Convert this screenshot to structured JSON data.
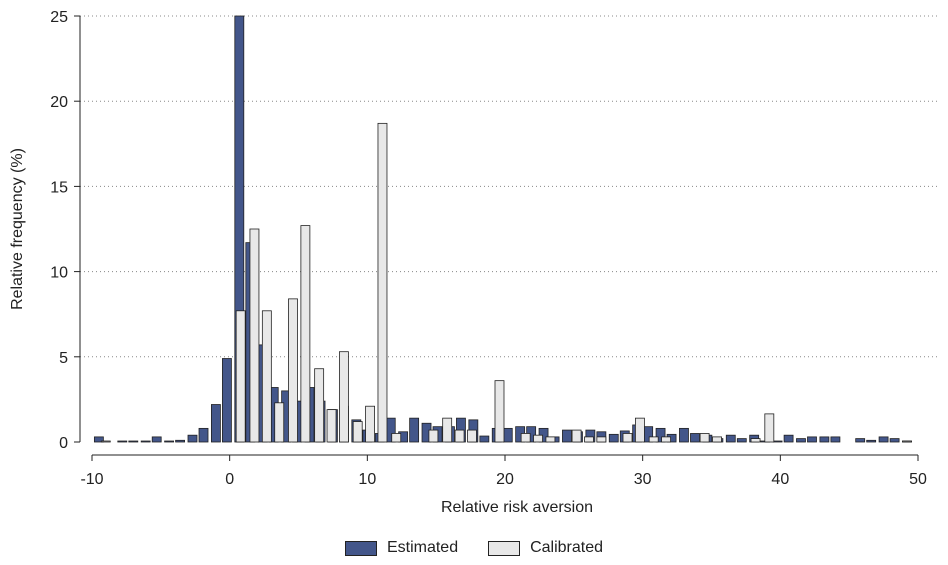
{
  "chart_data": {
    "type": "bar",
    "xlabel": "Relative risk aversion",
    "ylabel": "Relative frequency (%)",
    "xlim": [
      -10,
      50
    ],
    "ylim": [
      0,
      25
    ],
    "xticks": [
      -10,
      0,
      10,
      20,
      30,
      40,
      50
    ],
    "yticks": [
      0,
      5,
      10,
      15,
      20,
      25
    ],
    "xtick_labels": [
      "-10",
      "0",
      "10",
      "20",
      "30",
      "40",
      "50"
    ],
    "ytick_labels": [
      "0",
      "5",
      "10",
      "15",
      "20",
      "25"
    ],
    "grid": "horizontal dotted",
    "legend": "bottom",
    "series": [
      {
        "name": "Estimated",
        "color": "#43568a",
        "x": [
          -9.5,
          -7.8,
          -7,
          -6.1,
          -5.3,
          -4.4,
          -3.6,
          -2.7,
          -1.9,
          -1,
          -0.2,
          0.7,
          1.5,
          2.4,
          3.2,
          4.1,
          4.9,
          5.8,
          6.6,
          7.5,
          8.3,
          9.2,
          10,
          10.9,
          11.7,
          12.6,
          13.4,
          14.3,
          15.1,
          16,
          16.8,
          17.7,
          18.5,
          19.4,
          20.2,
          21.1,
          21.9,
          22.8,
          23.6,
          24.5,
          25.3,
          26.2,
          27,
          27.9,
          28.7,
          29.6,
          30.4,
          31.3,
          32.1,
          33,
          33.8,
          34.7,
          35.5,
          36.4,
          37.2,
          38.1,
          38.9,
          39.8,
          40.6,
          41.5,
          42.3,
          43.2,
          44,
          45.8,
          46.6,
          47.5,
          48.3,
          49.2
        ],
        "values": [
          0.3,
          0.05,
          0.05,
          0.05,
          0.3,
          0.05,
          0.1,
          0.4,
          0.8,
          2.2,
          4.9,
          25,
          11.7,
          5.7,
          3.2,
          3,
          2.4,
          3.2,
          2.4,
          1.9,
          2.1,
          1.3,
          0.7,
          0.5,
          1.4,
          0.6,
          1.4,
          1.1,
          0.9,
          0.9,
          1.4,
          1.3,
          0.35,
          0.8,
          0.8,
          0.9,
          0.9,
          0.8,
          0.3,
          0.7,
          0.6,
          0.7,
          0.6,
          0.45,
          0.65,
          1,
          0.9,
          0.8,
          0.45,
          0.8,
          0.5,
          0.4,
          0.2,
          0.4,
          0.2,
          0.4,
          0.05,
          0.05,
          0.4,
          0.2,
          0.3,
          0.3,
          0.3,
          0.2,
          0.1,
          0.3,
          0.2,
          0.05
        ]
      },
      {
        "name": "Calibrated",
        "color": "#e8e8e8",
        "x": [
          -9,
          0.8,
          1.8,
          2.7,
          3.6,
          4.6,
          5.5,
          6.5,
          7.4,
          8.3,
          9.3,
          10.2,
          11.1,
          12.1,
          14.8,
          15.8,
          16.7,
          17.6,
          19.6,
          21.5,
          22.4,
          23.3,
          25.2,
          26.1,
          27,
          28.9,
          29.8,
          30.8,
          31.7,
          34.5,
          35.4,
          38.2,
          39.2,
          49.2
        ],
        "values": [
          0.05,
          7.7,
          12.5,
          7.7,
          2.3,
          8.4,
          12.7,
          4.3,
          1.9,
          5.3,
          1.2,
          2.1,
          18.7,
          0.5,
          0.7,
          1.4,
          0.7,
          0.7,
          3.6,
          0.5,
          0.4,
          0.3,
          0.7,
          0.3,
          0.3,
          0.5,
          1.4,
          0.3,
          0.3,
          0.5,
          0.3,
          0.2,
          1.65,
          0.05
        ]
      }
    ]
  }
}
